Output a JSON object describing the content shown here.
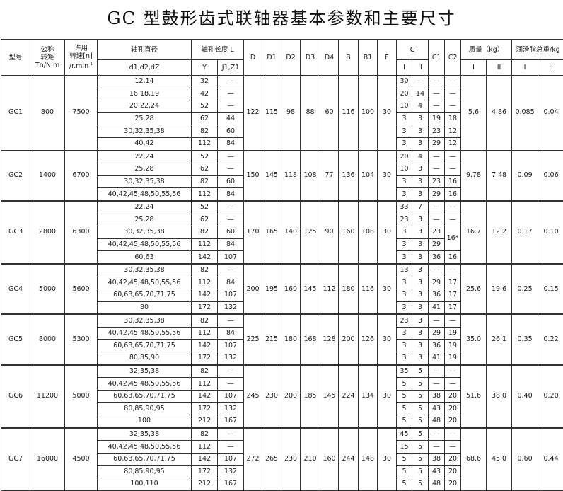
{
  "title": "GC 型鼓形齿式联轴器基本参数和主要尺寸",
  "headers": {
    "model": "型号",
    "torque_1": "公称",
    "torque_2": "转矩",
    "torque_3": "Tn/N.m",
    "speed_1": "许用",
    "speed_2": "转速[n]",
    "speed_3": "/r.min",
    "speed_sup": "-1",
    "bore": "轴孔直径",
    "bore_sub": "d1,d2,dZ",
    "length": "轴孔长度 L",
    "Y": "Y",
    "J": "J1,Z1",
    "D": "D",
    "D1": "D1",
    "D2": "D2",
    "D3": "D3",
    "D4": "D4",
    "B": "B",
    "B1": "B1",
    "F": "F",
    "C": "C",
    "C1": "C1",
    "C2": "C2",
    "I": "I",
    "II": "II",
    "mass": "质量（kg）",
    "grease": "润滑脂总重/kg"
  },
  "groups": [
    {
      "model": "GC1",
      "torque": "800",
      "speed": "7500",
      "D": "122",
      "D1": "115",
      "D2": "98",
      "D3": "88",
      "D4": "60",
      "B": "116",
      "B1": "100",
      "F": "30",
      "massI": "5.6",
      "massII": "4.86",
      "greaseI": "0.085",
      "greaseII": "0.04",
      "rows": [
        [
          "12,14",
          "32",
          "—",
          "30",
          "—",
          "—",
          "—"
        ],
        [
          "16,18,19",
          "42",
          "—",
          "20",
          "14",
          "—",
          "—"
        ],
        [
          "20,22,24",
          "52",
          "—",
          "10",
          "4",
          "—",
          "—"
        ],
        [
          "25,28",
          "62",
          "44",
          "3",
          "3",
          "19",
          "18"
        ],
        [
          "30,32,35,38",
          "82",
          "60",
          "3",
          "3",
          "23",
          "12"
        ],
        [
          "40,42",
          "112",
          "84",
          "3",
          "3",
          "29",
          "12"
        ]
      ]
    },
    {
      "model": "GC2",
      "torque": "1400",
      "speed": "6700",
      "D": "150",
      "D1": "145",
      "D2": "118",
      "D3": "108",
      "D4": "77",
      "B": "136",
      "B1": "104",
      "F": "30",
      "massI": "9.78",
      "massII": "7.48",
      "greaseI": "0.09",
      "greaseII": "0.06",
      "rows": [
        [
          "22,24",
          "52",
          "—",
          "20",
          "4",
          "—",
          "—"
        ],
        [
          "25,28",
          "62",
          "—",
          "10",
          "3",
          "—",
          "—"
        ],
        [
          "30,32,35,38",
          "82",
          "60",
          "3",
          "3",
          "23",
          "16"
        ],
        [
          "40,42,45,48,50,55,56",
          "112",
          "84",
          "3",
          "3",
          "29",
          "16"
        ]
      ]
    },
    {
      "model": "GC3",
      "torque": "2800",
      "speed": "6300",
      "D": "170",
      "D1": "165",
      "D2": "140",
      "D3": "125",
      "D4": "90",
      "B": "160",
      "B1": "108",
      "F": "30",
      "massI": "16.7",
      "massII": "12.2",
      "greaseI": "0.17",
      "greaseII": "0.10",
      "rows": [
        [
          "22,24",
          "52",
          "—",
          "33",
          "7",
          "—",
          "—"
        ],
        [
          "25,28",
          "62",
          "—",
          "23",
          "3",
          "—",
          "—"
        ],
        [
          "30,32,35,38",
          "82",
          "60",
          "3",
          "3",
          "23",
          "16*"
        ],
        [
          "40,42,45,48,50,55,56",
          "112",
          "84",
          "3",
          "3",
          "29",
          null
        ],
        [
          "60,63",
          "142",
          "107",
          "3",
          "3",
          "36",
          "16"
        ]
      ]
    },
    {
      "model": "GC4",
      "torque": "5000",
      "speed": "5600",
      "D": "200",
      "D1": "195",
      "D2": "160",
      "D3": "145",
      "D4": "112",
      "B": "180",
      "B1": "116",
      "F": "30",
      "massI": "25.6",
      "massII": "19.6",
      "greaseI": "0.25",
      "greaseII": "0.15",
      "rows": [
        [
          "30,32,35,38",
          "82",
          "—",
          "13",
          "3",
          "—",
          "—"
        ],
        [
          "40,42,45,48,50,55,56",
          "112",
          "84",
          "3",
          "3",
          "29",
          "17"
        ],
        [
          "60,63,65,70,71,75",
          "142",
          "107",
          "3",
          "3",
          "36",
          "17"
        ],
        [
          "80",
          "172",
          "132",
          "3",
          "3",
          "41",
          "17"
        ]
      ]
    },
    {
      "model": "GC5",
      "torque": "8000",
      "speed": "5300",
      "D": "225",
      "D1": "215",
      "D2": "180",
      "D3": "168",
      "D4": "128",
      "B": "200",
      "B1": "126",
      "F": "30",
      "massI": "35.0",
      "massII": "26.1",
      "greaseI": "0.35",
      "greaseII": "0.22",
      "rows": [
        [
          "30,32,35,38",
          "82",
          "—",
          "23",
          "3",
          "—",
          "—"
        ],
        [
          "40,42,45,48,50,55,56",
          "112",
          "84",
          "3",
          "3",
          "29",
          "19"
        ],
        [
          "60,63,65,70,71,75",
          "142",
          "107",
          "3",
          "3",
          "36",
          "19"
        ],
        [
          "80,85,90",
          "172",
          "132",
          "3",
          "3",
          "41",
          "19"
        ]
      ]
    },
    {
      "model": "GC6",
      "torque": "11200",
      "speed": "5000",
      "D": "245",
      "D1": "230",
      "D2": "200",
      "D3": "185",
      "D4": "145",
      "B": "224",
      "B1": "134",
      "F": "30",
      "massI": "51.6",
      "massII": "38.0",
      "greaseI": "0.40",
      "greaseII": "0.20",
      "rows": [
        [
          "32,35,38",
          "82",
          "—",
          "35",
          "5",
          "—",
          "—"
        ],
        [
          "40,42,45,48,50,55,56",
          "112",
          "—",
          "5",
          "5",
          "—",
          "—"
        ],
        [
          "60,63,65,70,71,75",
          "142",
          "107",
          "5",
          "5",
          "38",
          "20"
        ],
        [
          "80,85,90,95",
          "172",
          "132",
          "5",
          "5",
          "43",
          "20"
        ],
        [
          "100",
          "212",
          "167",
          "5",
          "5",
          "48",
          "20"
        ]
      ]
    },
    {
      "model": "GC7",
      "torque": "16000",
      "speed": "4500",
      "D": "272",
      "D1": "265",
      "D2": "230",
      "D3": "210",
      "D4": "160",
      "B": "244",
      "B1": "148",
      "F": "30",
      "massI": "68.6",
      "massII": "45.0",
      "greaseI": "0.60",
      "greaseII": "0.44",
      "rows": [
        [
          "32,35,38",
          "82",
          "—",
          "45",
          "5",
          "—",
          "—"
        ],
        [
          "40,42,45,48,50,55,56",
          "112",
          "—",
          "15",
          "5",
          "—",
          "—"
        ],
        [
          "60,63,65,70,71,75",
          "142",
          "107",
          "5",
          "5",
          "38",
          "20"
        ],
        [
          "80,85,90,95",
          "172",
          "132",
          "5",
          "5",
          "43",
          "20"
        ],
        [
          "100,110",
          "212",
          "167",
          "5",
          "5",
          "48",
          "20"
        ]
      ]
    }
  ]
}
